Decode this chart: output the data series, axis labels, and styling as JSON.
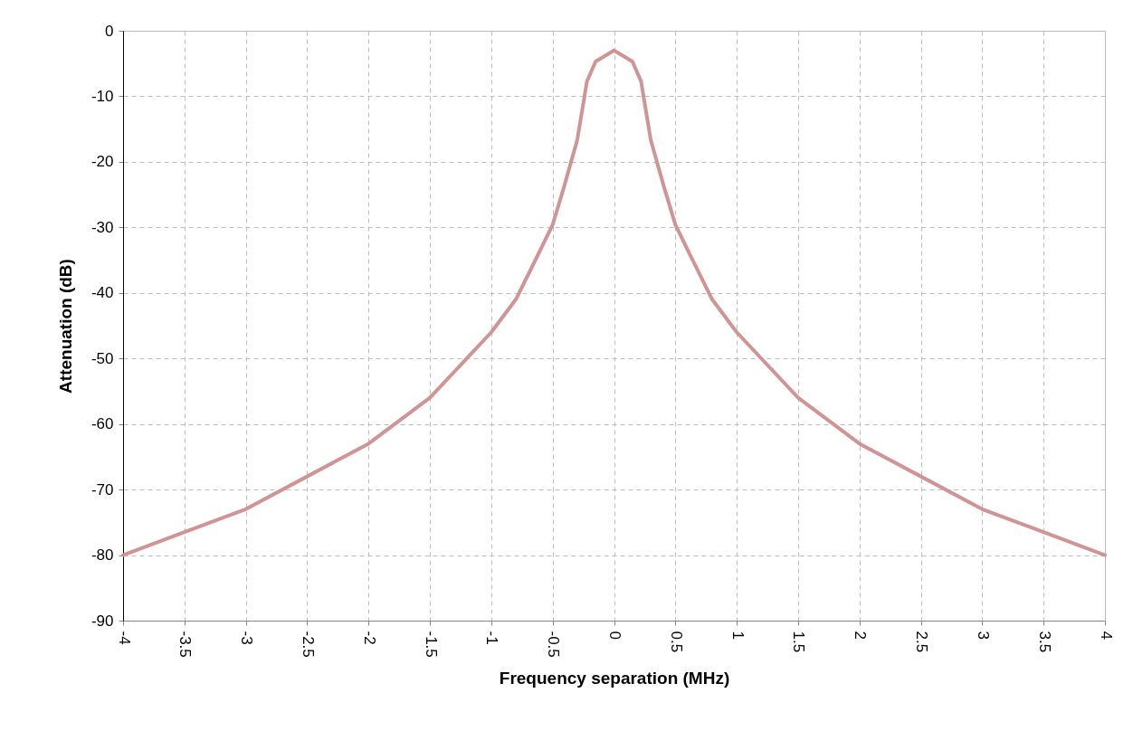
{
  "chart_data": {
    "type": "line",
    "xlabel": "Frequency separation (MHz)",
    "ylabel": "Attenuation (dB)",
    "x": [
      -4,
      -3.5,
      -3,
      -2.5,
      -2,
      -1.5,
      -1,
      -0.8,
      -0.62,
      -0.5,
      -0.41,
      -0.3,
      -0.22,
      -0.15,
      0,
      0.15,
      0.22,
      0.3,
      0.41,
      0.5,
      0.62,
      0.8,
      1,
      1.5,
      2,
      2.5,
      3,
      3.5,
      4
    ],
    "series": [
      {
        "color": "#d09494",
        "values": [
          -80,
          -76.5,
          -73,
          -68,
          -63,
          -56,
          -46,
          -41,
          -34.2,
          -29.6,
          -24,
          -16.7,
          -7.7,
          -4.7,
          -3,
          -4.7,
          -7.7,
          -16.7,
          -24,
          -29.6,
          -34.2,
          -41,
          -46,
          -56,
          -63,
          -68,
          -73,
          -76.5,
          -80
        ]
      }
    ],
    "xlim": [
      -4,
      4
    ],
    "xticks": [
      -4,
      -3.5,
      -3,
      -2.5,
      -2,
      -1.5,
      -1,
      -0.5,
      0,
      0.5,
      1,
      1.5,
      2,
      2.5,
      3,
      3.5,
      4
    ],
    "ylim": [
      -90,
      0
    ],
    "yticks": [
      -90,
      -80,
      -70,
      -60,
      -50,
      -40,
      -30,
      -20,
      -10,
      0
    ],
    "grid": true,
    "line_style": "solid",
    "marker": "none"
  }
}
